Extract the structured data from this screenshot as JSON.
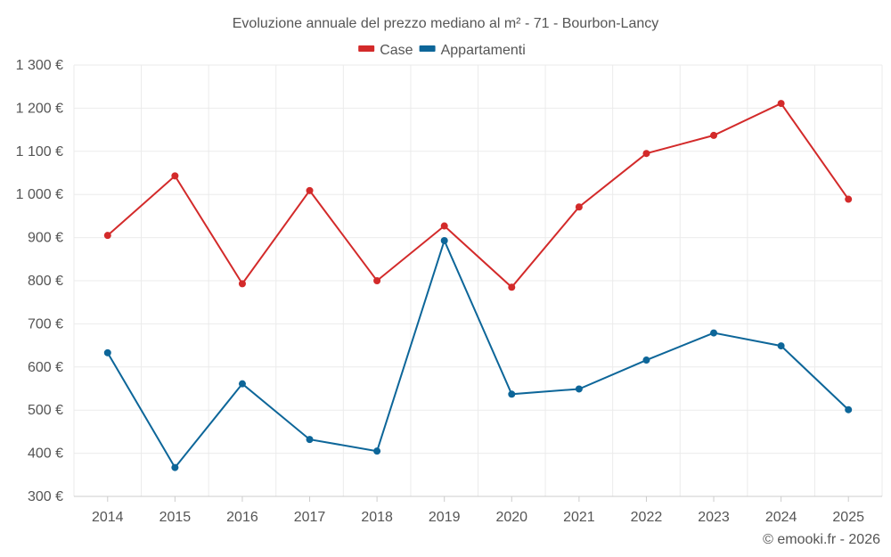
{
  "chart_data": {
    "type": "line",
    "title": "Evoluzione annuale del prezzo mediano al m² - 71 - Bourbon-Lancy",
    "categories": [
      "2014",
      "2015",
      "2016",
      "2017",
      "2018",
      "2019",
      "2020",
      "2021",
      "2022",
      "2023",
      "2024",
      "2025"
    ],
    "series": [
      {
        "name": "Case",
        "color": "#d32a2a",
        "values": [
          905,
          1043,
          793,
          1009,
          800,
          927,
          785,
          971,
          1095,
          1137,
          1211,
          989
        ]
      },
      {
        "name": "Appartamenti",
        "color": "#0d6699",
        "values": [
          633,
          367,
          561,
          432,
          405,
          893,
          537,
          549,
          616,
          679,
          649,
          501
        ]
      }
    ],
    "y_ticks": [
      300,
      400,
      500,
      600,
      700,
      800,
      900,
      1000,
      1100,
      1200,
      1300
    ],
    "y_tick_labels": [
      "300 €",
      "400 €",
      "500 €",
      "600 €",
      "700 €",
      "800 €",
      "900 €",
      "1 000 €",
      "1 100 €",
      "1 200 €",
      "1 300 €"
    ],
    "ylim": [
      300,
      1300
    ],
    "xlabel": "",
    "ylabel": "",
    "legend_position": "top-center",
    "grid": true
  },
  "credit": "© emooki.fr - 2026"
}
